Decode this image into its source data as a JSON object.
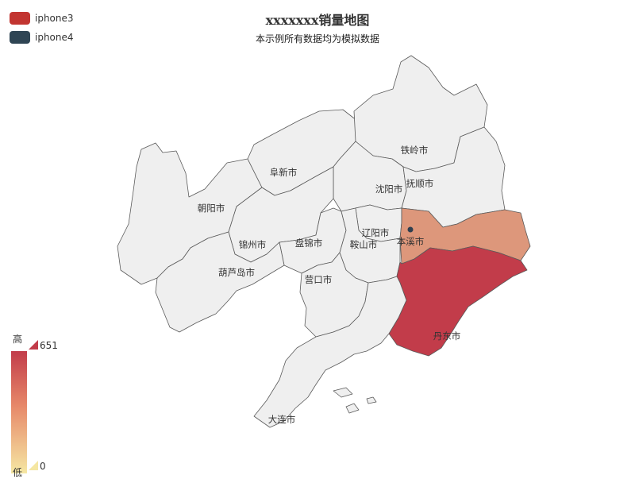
{
  "title": "xxxxxxx销量地图",
  "subtitle": "本示例所有数据均为模拟数据",
  "legend": [
    {
      "name": "iphone3",
      "color": "#c23531"
    },
    {
      "name": "iphone4",
      "color": "#2f4554"
    }
  ],
  "visual_map": {
    "high_label": "高",
    "low_label": "低",
    "max": 651,
    "min": 0,
    "high_color": "#c23c4a",
    "low_color": "#f5e7a3"
  },
  "colors": {
    "default_region": "#efefef",
    "border": "#5a5a5a"
  },
  "cities": [
    {
      "name": "铁岭市",
      "value": null
    },
    {
      "name": "阜新市",
      "value": null
    },
    {
      "name": "沈阳市",
      "value": null
    },
    {
      "name": "抚顺市",
      "value": null
    },
    {
      "name": "朝阳市",
      "value": null
    },
    {
      "name": "辽阳市",
      "value": null
    },
    {
      "name": "本溪市",
      "value": 300
    },
    {
      "name": "锦州市",
      "value": null
    },
    {
      "name": "盘锦市",
      "value": null
    },
    {
      "name": "鞍山市",
      "value": null
    },
    {
      "name": "葫芦岛市",
      "value": null
    },
    {
      "name": "营口市",
      "value": null
    },
    {
      "name": "丹东市",
      "value": 651
    },
    {
      "name": "大连市",
      "value": null
    }
  ]
}
